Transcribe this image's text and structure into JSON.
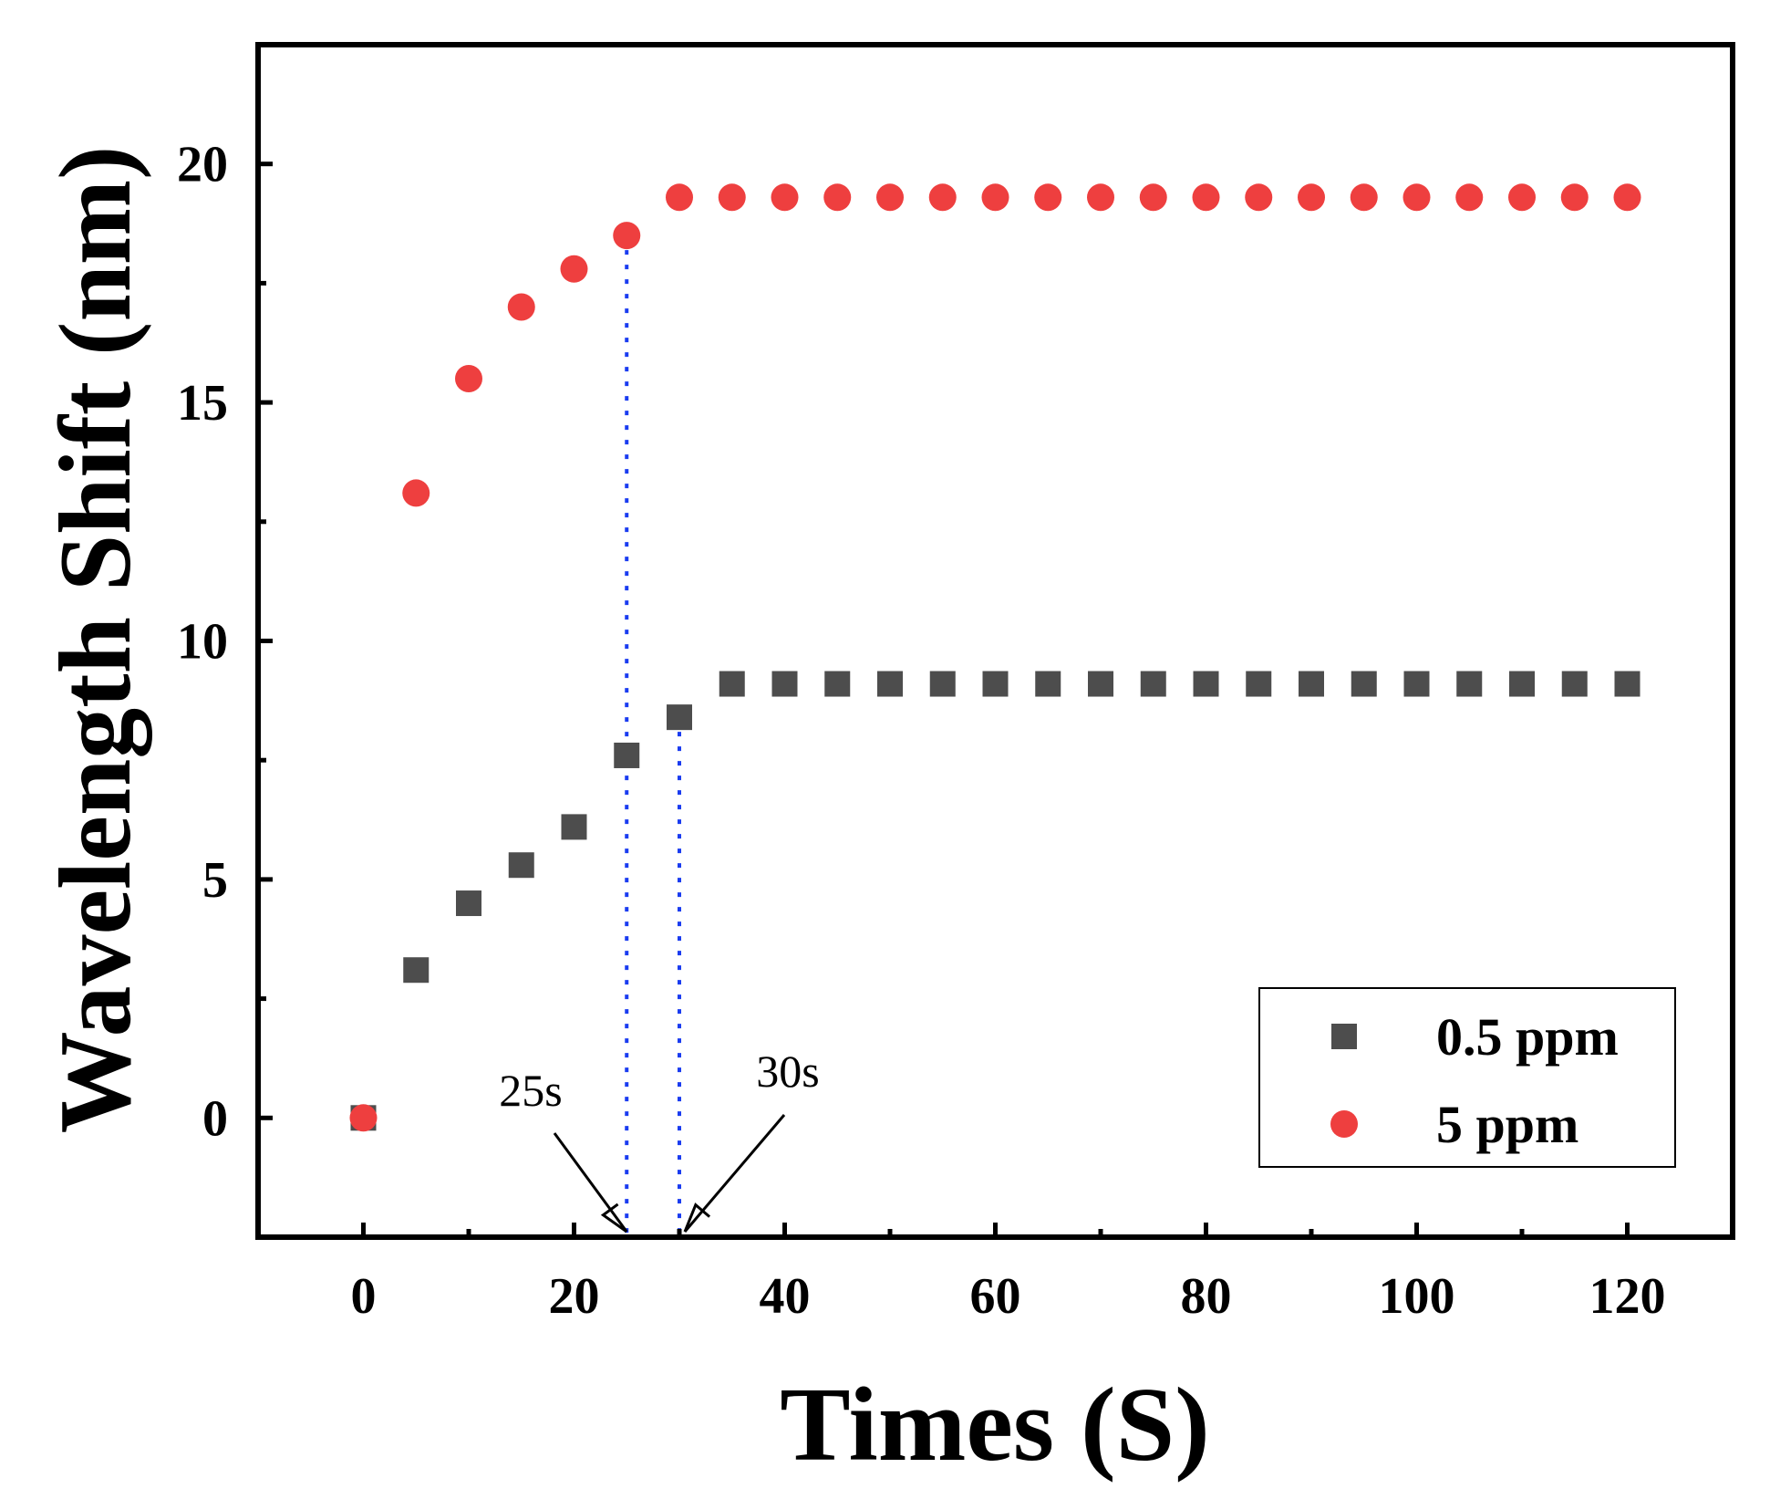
{
  "chart_data": {
    "type": "scatter",
    "xlabel": "Times (S)",
    "ylabel": "Wavelength Shift (nm)",
    "xlim": [
      -10,
      130
    ],
    "ylim": [
      -2.5,
      22.5
    ],
    "xticks": [
      0,
      20,
      40,
      60,
      80,
      100,
      120
    ],
    "xticks_minor": [
      10,
      30,
      50,
      70,
      90,
      110
    ],
    "yticks": [
      0,
      5,
      10,
      15,
      20
    ],
    "yticks_minor": [
      2.5,
      7.5,
      12.5,
      17.5
    ],
    "legend_position": "bottom-right",
    "x": [
      0,
      5,
      10,
      15,
      20,
      25,
      30,
      35,
      40,
      45,
      50,
      55,
      60,
      65,
      70,
      75,
      80,
      85,
      90,
      95,
      100,
      105,
      110,
      115,
      120
    ],
    "series": [
      {
        "name": "0.5 ppm",
        "marker": "square",
        "color": "#4d4d4d",
        "values": [
          0,
          3.1,
          4.5,
          5.3,
          6.1,
          7.6,
          8.4,
          9.1,
          9.1,
          9.1,
          9.1,
          9.1,
          9.1,
          9.1,
          9.1,
          9.1,
          9.1,
          9.1,
          9.1,
          9.1,
          9.1,
          9.1,
          9.1,
          9.1,
          9.1
        ]
      },
      {
        "name": "5 ppm",
        "marker": "circle",
        "color": "#ee3f3f",
        "values": [
          0,
          13.1,
          15.5,
          17.0,
          17.8,
          18.5,
          19.3,
          19.3,
          19.3,
          19.3,
          19.3,
          19.3,
          19.3,
          19.3,
          19.3,
          19.3,
          19.3,
          19.3,
          19.3,
          19.3,
          19.3,
          19.3,
          19.3,
          19.3,
          19.3
        ]
      }
    ],
    "annotations": [
      {
        "text": "25s",
        "x": 25,
        "line_to_series": "5 ppm"
      },
      {
        "text": "30s",
        "x": 30,
        "line_to_series": "0.5 ppm"
      }
    ],
    "guide_line_color": "#1a3cf0"
  }
}
